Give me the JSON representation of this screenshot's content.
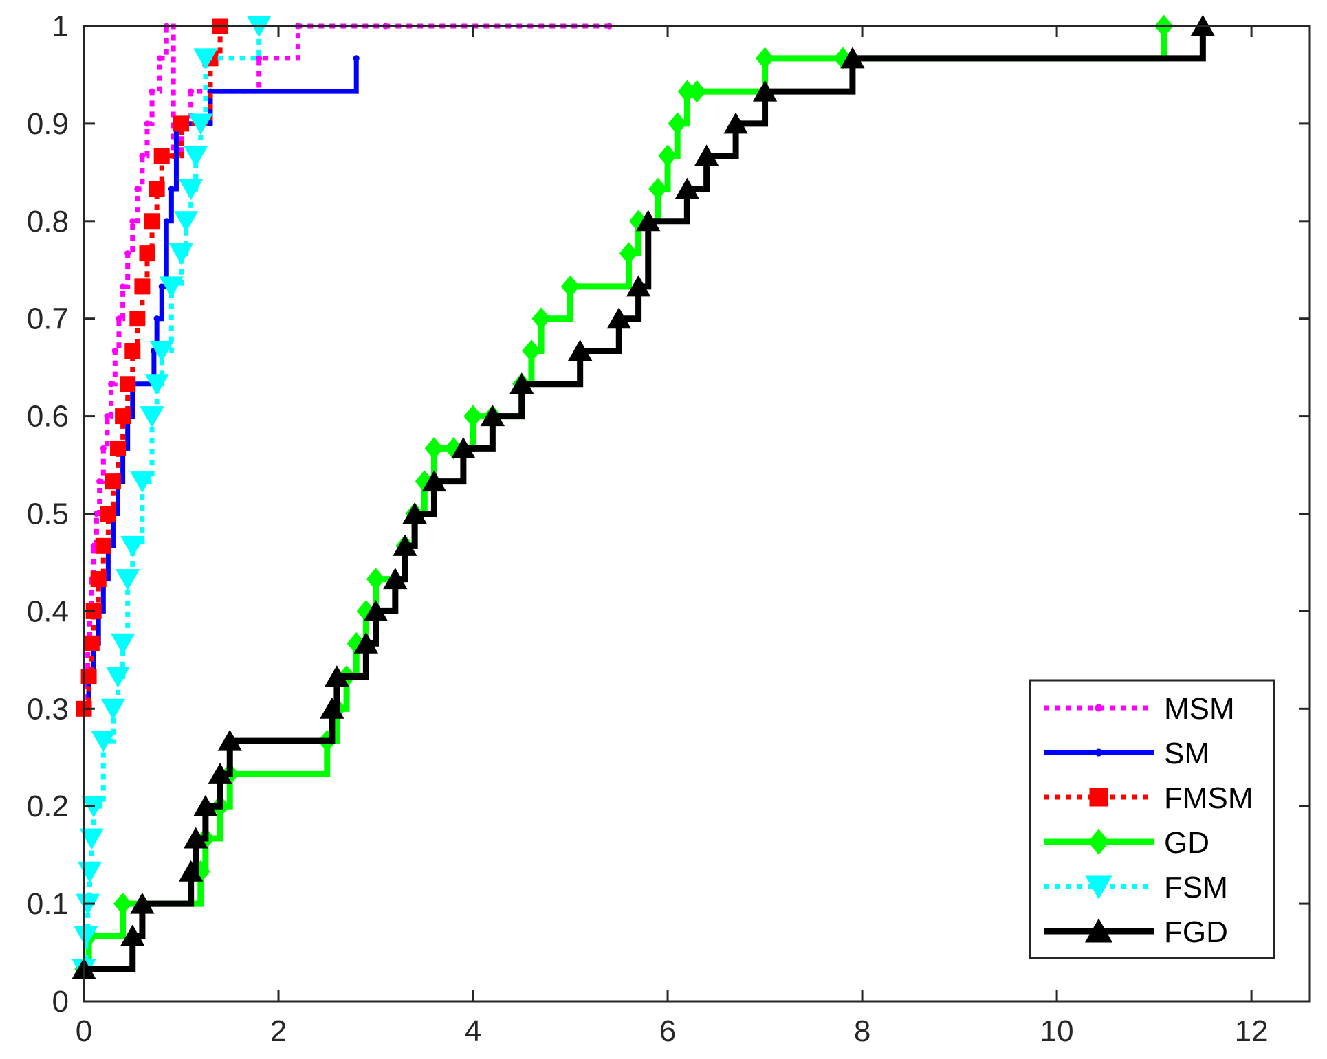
{
  "chart_data": {
    "type": "line",
    "title": "",
    "xlabel": "",
    "ylabel": "",
    "xlim": [
      0,
      12.6
    ],
    "ylim": [
      0,
      1
    ],
    "xticks": [
      "0",
      "2",
      "4",
      "6",
      "8",
      "10",
      "12"
    ],
    "yticks": [
      "0",
      "0.1",
      "0.2",
      "0.3",
      "0.4",
      "0.5",
      "0.6",
      "0.7",
      "0.8",
      "0.9",
      "1"
    ],
    "grid": false,
    "legend_position": "bottom-right",
    "series": [
      {
        "name": "MSM",
        "color": "#ff00ff",
        "line": "dotted",
        "marker": "point",
        "step": true,
        "x": [
          0,
          0.02,
          0.04,
          0.06,
          0.08,
          0.1,
          0.13,
          0.16,
          0.2,
          0.24,
          0.28,
          0.32,
          0.36,
          0.4,
          0.45,
          0.5,
          0.55,
          0.6,
          0.65,
          0.7,
          0.78,
          0.85,
          0.92,
          1.0,
          1.1,
          1.8,
          2.2,
          3.1,
          5.4
        ],
        "y": [
          0.3,
          0.333,
          0.367,
          0.4,
          0.433,
          0.467,
          0.5,
          0.533,
          0.567,
          0.6,
          0.633,
          0.667,
          0.7,
          0.733,
          0.767,
          0.8,
          0.833,
          0.867,
          0.9,
          0.933,
          0.967,
          1.0,
          0.867,
          0.9,
          0.933,
          0.967,
          1.0,
          1.0,
          1.0
        ]
      },
      {
        "name": "SM",
        "color": "#0000ff",
        "line": "solid",
        "marker": "point",
        "step": true,
        "x": [
          0,
          0.05,
          0.1,
          0.15,
          0.2,
          0.25,
          0.3,
          0.35,
          0.4,
          0.45,
          0.5,
          0.72,
          0.75,
          0.8,
          0.85,
          0.9,
          0.95,
          1.3,
          2.8
        ],
        "y": [
          0.3,
          0.333,
          0.367,
          0.4,
          0.433,
          0.467,
          0.5,
          0.533,
          0.567,
          0.6,
          0.633,
          0.667,
          0.7,
          0.733,
          0.8,
          0.833,
          0.9,
          0.933,
          0.967
        ]
      },
      {
        "name": "FMSM",
        "color": "#ff0000",
        "line": "dotted",
        "marker": "square",
        "step": true,
        "x": [
          0,
          0.05,
          0.08,
          0.1,
          0.15,
          0.2,
          0.25,
          0.3,
          0.35,
          0.4,
          0.45,
          0.5,
          0.55,
          0.6,
          0.65,
          0.7,
          0.75,
          0.8,
          1.0,
          1.3,
          1.4
        ],
        "y": [
          0.3,
          0.333,
          0.367,
          0.4,
          0.433,
          0.467,
          0.5,
          0.533,
          0.567,
          0.6,
          0.633,
          0.667,
          0.7,
          0.733,
          0.767,
          0.8,
          0.833,
          0.867,
          0.9,
          0.967,
          1.0
        ]
      },
      {
        "name": "GD",
        "color": "#00ff00",
        "line": "solid",
        "marker": "diamond",
        "step": true,
        "x": [
          0,
          0.05,
          0.4,
          1.2,
          1.25,
          1.4,
          1.5,
          2.5,
          2.6,
          2.7,
          2.8,
          2.9,
          3.0,
          3.3,
          3.4,
          3.5,
          3.6,
          3.8,
          4.0,
          4.2,
          4.5,
          4.6,
          4.7,
          5.0,
          5.6,
          5.7,
          5.9,
          6.0,
          6.1,
          6.2,
          6.3,
          7.0,
          7.8,
          11.1
        ],
        "y": [
          0.033,
          0.067,
          0.1,
          0.133,
          0.167,
          0.2,
          0.233,
          0.267,
          0.3,
          0.333,
          0.367,
          0.4,
          0.433,
          0.467,
          0.5,
          0.533,
          0.567,
          0.567,
          0.6,
          0.6,
          0.633,
          0.667,
          0.7,
          0.733,
          0.767,
          0.8,
          0.833,
          0.867,
          0.9,
          0.933,
          0.933,
          0.967,
          0.967,
          1.0
        ]
      },
      {
        "name": "FSM",
        "color": "#00ffff",
        "line": "dotted",
        "marker": "triangle-down",
        "step": true,
        "x": [
          0,
          0.02,
          0.04,
          0.06,
          0.08,
          0.1,
          0.2,
          0.3,
          0.35,
          0.4,
          0.45,
          0.5,
          0.6,
          0.7,
          0.75,
          0.8,
          0.9,
          1.0,
          1.05,
          1.1,
          1.15,
          1.2,
          1.25,
          1.8
        ],
        "y": [
          0.033,
          0.067,
          0.1,
          0.133,
          0.167,
          0.2,
          0.267,
          0.3,
          0.333,
          0.367,
          0.433,
          0.467,
          0.533,
          0.6,
          0.633,
          0.667,
          0.733,
          0.767,
          0.8,
          0.833,
          0.867,
          0.9,
          0.967,
          1.0
        ]
      },
      {
        "name": "FGD",
        "color": "#000000",
        "line": "solid",
        "marker": "triangle-up",
        "step": true,
        "x": [
          0,
          0.5,
          0.6,
          1.1,
          1.15,
          1.25,
          1.4,
          1.5,
          2.55,
          2.6,
          2.9,
          3.0,
          3.2,
          3.3,
          3.4,
          3.6,
          3.9,
          4.2,
          4.5,
          5.1,
          5.5,
          5.7,
          5.8,
          6.2,
          6.4,
          6.7,
          7.0,
          7.9,
          11.5
        ],
        "y": [
          0.033,
          0.067,
          0.1,
          0.133,
          0.167,
          0.2,
          0.233,
          0.267,
          0.3,
          0.333,
          0.367,
          0.4,
          0.433,
          0.467,
          0.5,
          0.533,
          0.567,
          0.6,
          0.633,
          0.667,
          0.7,
          0.733,
          0.8,
          0.833,
          0.867,
          0.9,
          0.933,
          0.967,
          1.0
        ]
      }
    ]
  }
}
